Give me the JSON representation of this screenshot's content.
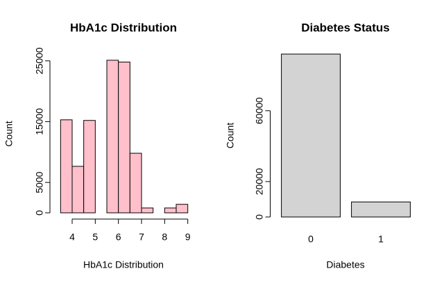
{
  "chart_data": [
    {
      "type": "histogram",
      "title": "HbA1c Distribution",
      "x_label": "HbA1c Distribution",
      "y_label": "Count",
      "bins": [
        3.5,
        4,
        4.5,
        5,
        5.5,
        6,
        6.5,
        7,
        7.5,
        8,
        8.5,
        9
      ],
      "values": [
        15300,
        7650,
        15200,
        0,
        25100,
        24800,
        9800,
        800,
        0,
        800,
        1400
      ],
      "color": "#ffc0cb",
      "xlim": [
        3.28,
        9.22
      ],
      "xticks": [
        4,
        5,
        6,
        7,
        8,
        9
      ],
      "ylim": [
        0,
        26000
      ],
      "yticks": [
        0,
        5000,
        15000,
        25000
      ]
    },
    {
      "type": "bar",
      "title": "Diabetes Status",
      "x_label": "Diabetes",
      "y_label": "Count",
      "categories": [
        "0",
        "1"
      ],
      "values": [
        92000,
        8500
      ],
      "color": "#d3d3d3",
      "ylim": [
        0,
        92000
      ],
      "yticks": [
        0,
        20000,
        60000
      ]
    }
  ]
}
